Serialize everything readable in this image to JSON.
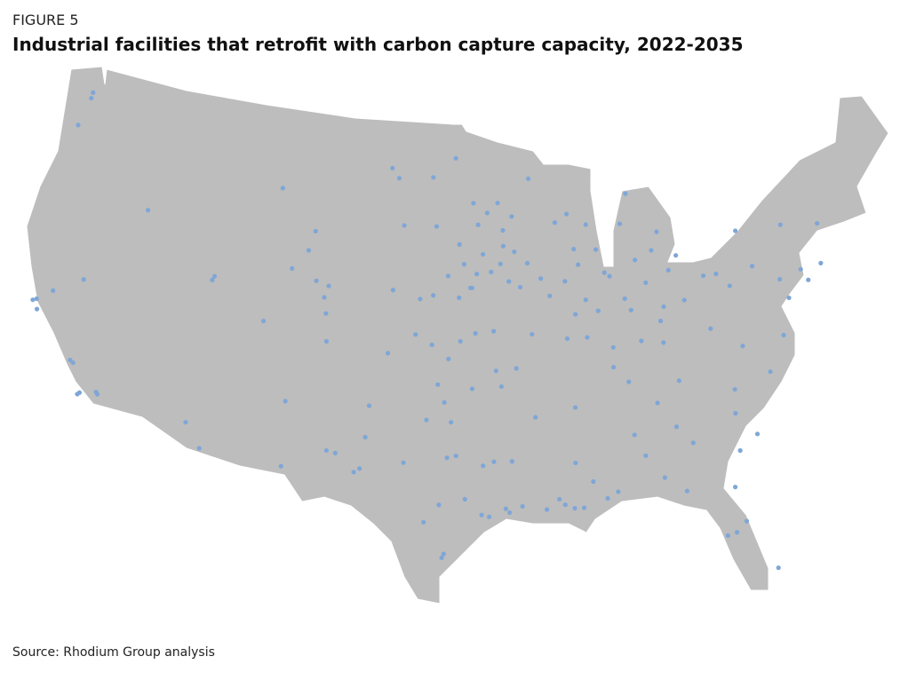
{
  "header": {
    "label": "FIGURE 5",
    "title": "Industrial facilities that retrofit with carbon capture capacity, 2022-2035"
  },
  "map": {
    "dot_color": "#7fa6d6",
    "land_color": "#bdbdbd",
    "facilities": [
      [
        -122.6,
        48.8
      ],
      [
        -122.6,
        48.5
      ],
      [
        -122.9,
        47.0
      ],
      [
        -116.9,
        43.6
      ],
      [
        -108.5,
        45.8
      ],
      [
        -106.0,
        43.8
      ],
      [
        -122.3,
        37.9
      ],
      [
        -122.1,
        38.0
      ],
      [
        -121.9,
        37.5
      ],
      [
        -121.3,
        38.6
      ],
      [
        -119.2,
        35.4
      ],
      [
        -119.0,
        35.3
      ],
      [
        -118.2,
        33.9
      ],
      [
        -118.3,
        33.8
      ],
      [
        -117.3,
        34.1
      ],
      [
        -117.2,
        34.0
      ],
      [
        -112.0,
        40.7
      ],
      [
        -111.9,
        40.9
      ],
      [
        -119.7,
        39.5
      ],
      [
        -112.0,
        33.4
      ],
      [
        -111.0,
        32.2
      ],
      [
        -106.6,
        35.1
      ],
      [
        -104.0,
        32.8
      ],
      [
        -103.5,
        32.7
      ],
      [
        -104.8,
        39.7
      ],
      [
        -105.0,
        40.5
      ],
      [
        -104.6,
        38.3
      ],
      [
        -108.5,
        39.0
      ],
      [
        -107.2,
        41.8
      ],
      [
        -105.6,
        41.3
      ],
      [
        -104.8,
        41.1
      ],
      [
        -106.3,
        42.8
      ],
      [
        -100.8,
        46.8
      ],
      [
        -97.0,
        47.9
      ],
      [
        -101.3,
        47.3
      ],
      [
        -98.5,
        46.9
      ],
      [
        -96.7,
        43.5
      ],
      [
        -100.3,
        44.4
      ],
      [
        -98.2,
        44.4
      ],
      [
        -96.0,
        41.3
      ],
      [
        -98.3,
        40.9
      ],
      [
        -100.8,
        41.1
      ],
      [
        -97.4,
        41.9
      ],
      [
        -96.7,
        40.8
      ],
      [
        -99.1,
        40.7
      ],
      [
        -97.3,
        37.7
      ],
      [
        -95.7,
        39.0
      ],
      [
        -98.3,
        38.4
      ],
      [
        -100.9,
        37.9
      ],
      [
        -96.6,
        38.6
      ],
      [
        -99.3,
        38.9
      ],
      [
        -94.2,
        45.6
      ],
      [
        -93.3,
        44.9
      ],
      [
        -95.5,
        44.5
      ],
      [
        -93.9,
        44.2
      ],
      [
        -94.9,
        45.1
      ],
      [
        -95.8,
        45.6
      ],
      [
        -92.1,
        46.8
      ],
      [
        -93.6,
        41.6
      ],
      [
        -94.1,
        42.5
      ],
      [
        -95.9,
        41.3
      ],
      [
        -92.4,
        42.5
      ],
      [
        -91.6,
        41.7
      ],
      [
        -93.2,
        43.1
      ],
      [
        -95.2,
        43.0
      ],
      [
        -96.4,
        42.5
      ],
      [
        -94.7,
        42.1
      ],
      [
        -91.1,
        40.8
      ],
      [
        -92.9,
        41.3
      ],
      [
        -93.9,
        43.4
      ],
      [
        -95.6,
        42.0
      ],
      [
        -94.6,
        39.1
      ],
      [
        -92.3,
        38.9
      ],
      [
        -90.2,
        38.6
      ],
      [
        -94.5,
        37.1
      ],
      [
        -93.3,
        37.2
      ],
      [
        -89.4,
        43.1
      ],
      [
        -88.0,
        43.0
      ],
      [
        -90.5,
        44.5
      ],
      [
        -89.7,
        44.9
      ],
      [
        -88.5,
        44.3
      ],
      [
        -87.6,
        41.8
      ],
      [
        -89.6,
        39.8
      ],
      [
        -88.9,
        40.5
      ],
      [
        -90.1,
        41.5
      ],
      [
        -88.2,
        39.9
      ],
      [
        -89.0,
        38.6
      ],
      [
        -89.2,
        42.3
      ],
      [
        -87.3,
        41.6
      ],
      [
        -86.2,
        39.8
      ],
      [
        -87.5,
        38.0
      ],
      [
        -85.1,
        41.1
      ],
      [
        -86.5,
        40.4
      ],
      [
        -83.6,
        41.6
      ],
      [
        -82.9,
        40.0
      ],
      [
        -84.2,
        39.8
      ],
      [
        -81.5,
        41.1
      ],
      [
        -84.5,
        39.1
      ],
      [
        -80.7,
        41.1
      ],
      [
        -83.0,
        42.3
      ],
      [
        -84.5,
        42.7
      ],
      [
        -85.6,
        42.3
      ],
      [
        -84.0,
        43.6
      ],
      [
        -86.3,
        44.2
      ],
      [
        -85.7,
        45.7
      ],
      [
        -80.0,
        40.4
      ],
      [
        -76.9,
        40.3
      ],
      [
        -75.2,
        40.0
      ],
      [
        -75.5,
        40.6
      ],
      [
        -78.4,
        41.2
      ],
      [
        -76.1,
        43.0
      ],
      [
        -73.8,
        42.7
      ],
      [
        -79.0,
        43.1
      ],
      [
        -74.2,
        40.7
      ],
      [
        -76.6,
        39.3
      ],
      [
        -77.4,
        37.5
      ],
      [
        -79.9,
        37.3
      ],
      [
        -81.6,
        38.4
      ],
      [
        -85.8,
        38.2
      ],
      [
        -84.5,
        38.0
      ],
      [
        -87.6,
        37.0
      ],
      [
        -86.8,
        36.2
      ],
      [
        -90.0,
        35.1
      ],
      [
        -85.3,
        35.0
      ],
      [
        -83.9,
        36.0
      ],
      [
        -80.8,
        35.2
      ],
      [
        -78.6,
        35.8
      ],
      [
        -81.0,
        34.0
      ],
      [
        -80.0,
        32.8
      ],
      [
        -84.4,
        33.7
      ],
      [
        -81.1,
        32.1
      ],
      [
        -83.6,
        32.8
      ],
      [
        -86.8,
        33.5
      ],
      [
        -88.0,
        30.7
      ],
      [
        -86.3,
        32.4
      ],
      [
        -85.4,
        31.2
      ],
      [
        -90.2,
        32.3
      ],
      [
        -88.6,
        30.4
      ],
      [
        -89.3,
        31.3
      ],
      [
        -93.2,
        30.2
      ],
      [
        -91.2,
        30.5
      ],
      [
        -90.9,
        30.2
      ],
      [
        -90.4,
        30.0
      ],
      [
        -93.7,
        32.5
      ],
      [
        -91.9,
        30.0
      ],
      [
        -89.9,
        30.0
      ],
      [
        -92.3,
        34.7
      ],
      [
        -94.2,
        36.3
      ],
      [
        -97.5,
        35.5
      ],
      [
        -95.9,
        36.2
      ],
      [
        -97.9,
        36.4
      ],
      [
        -97.1,
        34.5
      ],
      [
        -98.5,
        34.6
      ],
      [
        -95.4,
        29.8
      ],
      [
        -95.0,
        29.7
      ],
      [
        -94.1,
        30.1
      ],
      [
        -93.9,
        29.9
      ],
      [
        -97.4,
        27.8
      ],
      [
        -97.5,
        27.6
      ],
      [
        -96.8,
        32.8
      ],
      [
        -97.3,
        32.7
      ],
      [
        -101.8,
        35.2
      ],
      [
        -101.9,
        33.6
      ],
      [
        -102.1,
        32.0
      ],
      [
        -102.4,
        31.8
      ],
      [
        -98.5,
        29.4
      ],
      [
        -97.7,
        30.3
      ],
      [
        -99.7,
        32.4
      ],
      [
        -96.3,
        30.6
      ],
      [
        -94.7,
        32.5
      ],
      [
        -95.3,
        32.3
      ],
      [
        -106.4,
        31.8
      ],
      [
        -81.7,
        30.3
      ],
      [
        -80.2,
        25.9
      ],
      [
        -82.5,
        27.9
      ],
      [
        -82.0,
        28.0
      ],
      [
        -84.3,
        30.4
      ],
      [
        -81.4,
        28.5
      ]
    ]
  },
  "source": "Source: Rhodium Group analysis"
}
